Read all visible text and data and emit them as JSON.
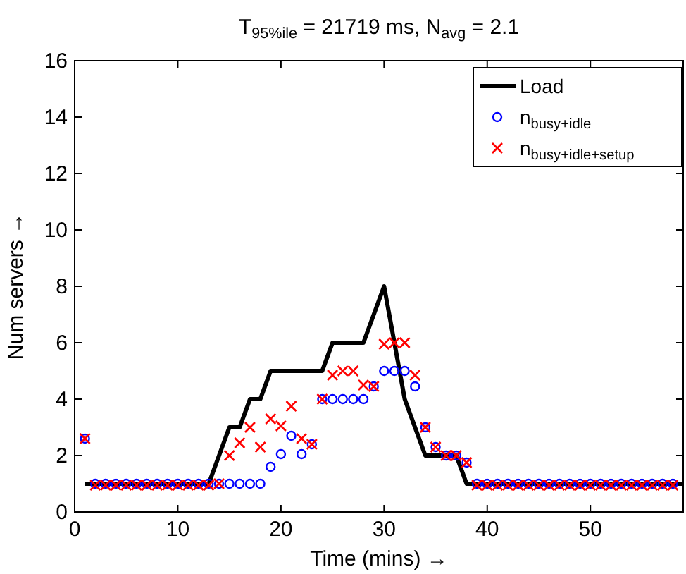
{
  "chart_data": {
    "type": "line",
    "title": "T$_{95%ile}$ = 21719 ms, N$_{avg}$ = 2.1",
    "xlabel": "Time (mins) →",
    "ylabel": "Num servers →",
    "xlim": [
      0,
      59
    ],
    "xticks": [
      0,
      10,
      20,
      30,
      40,
      50
    ],
    "ylim": [
      0,
      16
    ],
    "yticks": [
      0,
      2,
      4,
      6,
      8,
      10,
      12,
      14,
      16
    ],
    "grid": false,
    "legend": "top right",
    "series": [
      {
        "name": "Load",
        "color": "#000000",
        "marker": "none",
        "x": [
          1,
          13,
          15,
          16,
          17,
          18,
          19,
          24,
          25,
          28,
          30,
          32,
          34,
          37,
          38,
          59
        ],
        "values": [
          1,
          1,
          3,
          3,
          4,
          4,
          5,
          5,
          6,
          6,
          8,
          4,
          2,
          2,
          1,
          1
        ]
      },
      {
        "name": "n$_{busy+idle}$",
        "type": "scatter",
        "color": "#0000ff",
        "marker": "circle",
        "x": [
          1,
          2,
          3,
          4,
          5,
          6,
          7,
          8,
          9,
          10,
          11,
          12,
          13,
          14,
          15,
          16,
          17,
          18,
          19,
          20,
          21,
          22,
          23,
          24,
          25,
          26,
          27,
          28,
          29,
          30,
          31,
          32,
          33,
          34,
          35,
          36,
          37,
          38,
          39,
          40,
          41,
          42,
          43,
          44,
          45,
          46,
          47,
          48,
          49,
          50,
          51,
          52,
          53,
          54,
          55,
          56,
          57,
          58
        ],
        "values": [
          2.6,
          1,
          1,
          1,
          1,
          1,
          1,
          1,
          1,
          1,
          1,
          1,
          1,
          1,
          1,
          1,
          1,
          1,
          1.6,
          2.05,
          2.7,
          2.05,
          2.4,
          4,
          4,
          4,
          4,
          4,
          4.45,
          5,
          5,
          5,
          4.45,
          3,
          2.3,
          2,
          2,
          1.75,
          1,
          1,
          1,
          1,
          1,
          1,
          1,
          1,
          1,
          1,
          1,
          1,
          1,
          1,
          1,
          1,
          1,
          1,
          1,
          1
        ]
      },
      {
        "name": "n$_{busy+idle+setup}$",
        "type": "scatter",
        "color": "#ff0000",
        "marker": "cross",
        "x": [
          1,
          2,
          3,
          4,
          5,
          6,
          7,
          8,
          9,
          10,
          11,
          12,
          13,
          14,
          15,
          16,
          17,
          18,
          19,
          20,
          21,
          22,
          23,
          24,
          25,
          26,
          27,
          28,
          29,
          30,
          31,
          32,
          33,
          34,
          35,
          36,
          37,
          38,
          39,
          40,
          41,
          42,
          43,
          44,
          45,
          46,
          47,
          48,
          49,
          50,
          51,
          52,
          53,
          54,
          55,
          56,
          57,
          58
        ],
        "values": [
          2.6,
          0.95,
          0.95,
          0.95,
          0.95,
          0.95,
          0.95,
          0.95,
          0.95,
          0.95,
          0.95,
          0.95,
          0.95,
          1,
          2,
          2.45,
          3,
          2.3,
          3.3,
          3.05,
          3.75,
          2.6,
          2.4,
          4,
          4.85,
          5,
          5,
          4.5,
          4.45,
          5.95,
          6,
          6,
          4.85,
          3,
          2.3,
          2,
          2,
          1.75,
          0.95,
          0.95,
          0.95,
          0.95,
          0.95,
          0.95,
          0.95,
          0.95,
          0.95,
          0.95,
          0.95,
          0.95,
          0.95,
          0.95,
          0.95,
          0.95,
          0.95,
          0.95,
          0.95,
          0.95
        ]
      }
    ]
  }
}
